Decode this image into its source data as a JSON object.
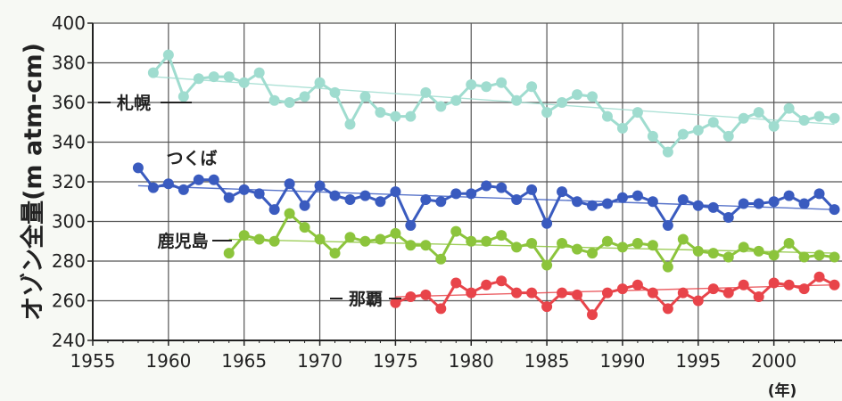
{
  "chart_data": {
    "type": "line",
    "ylabel": "オゾン全量(m atm-cm)",
    "xunit": "(年)",
    "xlim": [
      1955,
      2004.5
    ],
    "ylim": [
      240,
      400
    ],
    "xticks": [
      1955,
      1960,
      1965,
      1970,
      1975,
      1980,
      1985,
      1990,
      1995,
      2000
    ],
    "yticks": [
      240,
      260,
      280,
      300,
      320,
      340,
      360,
      380,
      400
    ],
    "grid": true,
    "series": [
      {
        "name": "札幌",
        "color": "#9fdccf",
        "x": [
          1959,
          1960,
          1961,
          1962,
          1963,
          1964,
          1965,
          1966,
          1967,
          1968,
          1969,
          1970,
          1971,
          1972,
          1973,
          1974,
          1975,
          1976,
          1977,
          1978,
          1979,
          1980,
          1981,
          1982,
          1983,
          1984,
          1985,
          1986,
          1987,
          1988,
          1989,
          1990,
          1991,
          1992,
          1993,
          1994,
          1995,
          1996,
          1997,
          1998,
          1999,
          2000,
          2001,
          2002,
          2003,
          2004
        ],
        "y": [
          375,
          384,
          363,
          372,
          373,
          373,
          370,
          375,
          361,
          360,
          363,
          370,
          365,
          349,
          363,
          355,
          353,
          353,
          365,
          358,
          361,
          369,
          368,
          370,
          361,
          368,
          355,
          360,
          364,
          363,
          353,
          347,
          355,
          343,
          335,
          344,
          346,
          350,
          343,
          352,
          355,
          348,
          357,
          351,
          353,
          352
        ],
        "trend": [
          [
            1959,
            373
          ],
          [
            2004,
            349
          ]
        ]
      },
      {
        "name": "つくば",
        "color": "#3a5bbf",
        "x": [
          1958,
          1959,
          1960,
          1961,
          1962,
          1963,
          1964,
          1965,
          1966,
          1967,
          1968,
          1969,
          1970,
          1971,
          1972,
          1973,
          1974,
          1975,
          1976,
          1977,
          1978,
          1979,
          1980,
          1981,
          1982,
          1983,
          1984,
          1985,
          1986,
          1987,
          1988,
          1989,
          1990,
          1991,
          1992,
          1993,
          1994,
          1995,
          1996,
          1997,
          1998,
          1999,
          2000,
          2001,
          2002,
          2003,
          2004
        ],
        "y": [
          327,
          317,
          319,
          316,
          321,
          321,
          312,
          316,
          314,
          306,
          319,
          308,
          318,
          313,
          311,
          313,
          310,
          315,
          298,
          311,
          310,
          314,
          314,
          318,
          317,
          311,
          316,
          299,
          315,
          310,
          308,
          309,
          312,
          313,
          310,
          298,
          311,
          308,
          307,
          302,
          309,
          309,
          310,
          313,
          309,
          314,
          306
        ],
        "trend": [
          [
            1958,
            318
          ],
          [
            2004,
            306
          ]
        ]
      },
      {
        "name": "鹿児島",
        "color": "#8cc43c",
        "x": [
          1964,
          1965,
          1966,
          1967,
          1968,
          1969,
          1970,
          1971,
          1972,
          1973,
          1974,
          1975,
          1976,
          1977,
          1978,
          1979,
          1980,
          1981,
          1982,
          1983,
          1984,
          1985,
          1986,
          1987,
          1988,
          1989,
          1990,
          1991,
          1992,
          1993,
          1994,
          1995,
          1996,
          1997,
          1998,
          1999,
          2000,
          2001,
          2002,
          2003,
          2004
        ],
        "y": [
          284,
          293,
          291,
          290,
          304,
          297,
          291,
          284,
          292,
          290,
          291,
          294,
          288,
          288,
          281,
          295,
          290,
          290,
          293,
          287,
          289,
          278,
          289,
          286,
          284,
          290,
          287,
          289,
          288,
          277,
          291,
          285,
          284,
          282,
          287,
          285,
          283,
          289,
          282,
          283,
          282
        ],
        "trend": [
          [
            1964,
            291
          ],
          [
            2004,
            284
          ]
        ]
      },
      {
        "name": "那覇",
        "color": "#e8444a",
        "x": [
          1975,
          1976,
          1977,
          1978,
          1979,
          1980,
          1981,
          1982,
          1983,
          1984,
          1985,
          1986,
          1987,
          1988,
          1989,
          1990,
          1991,
          1992,
          1993,
          1994,
          1995,
          1996,
          1997,
          1998,
          1999,
          2000,
          2001,
          2002,
          2003,
          2004
        ],
        "y": [
          259,
          262,
          263,
          256,
          269,
          264,
          268,
          270,
          264,
          264,
          257,
          264,
          263,
          253,
          264,
          266,
          268,
          264,
          256,
          264,
          260,
          266,
          264,
          268,
          262,
          269,
          268,
          266,
          272,
          268
        ],
        "trend": [
          [
            1975,
            262
          ],
          [
            2004,
            268
          ]
        ]
      }
    ]
  }
}
